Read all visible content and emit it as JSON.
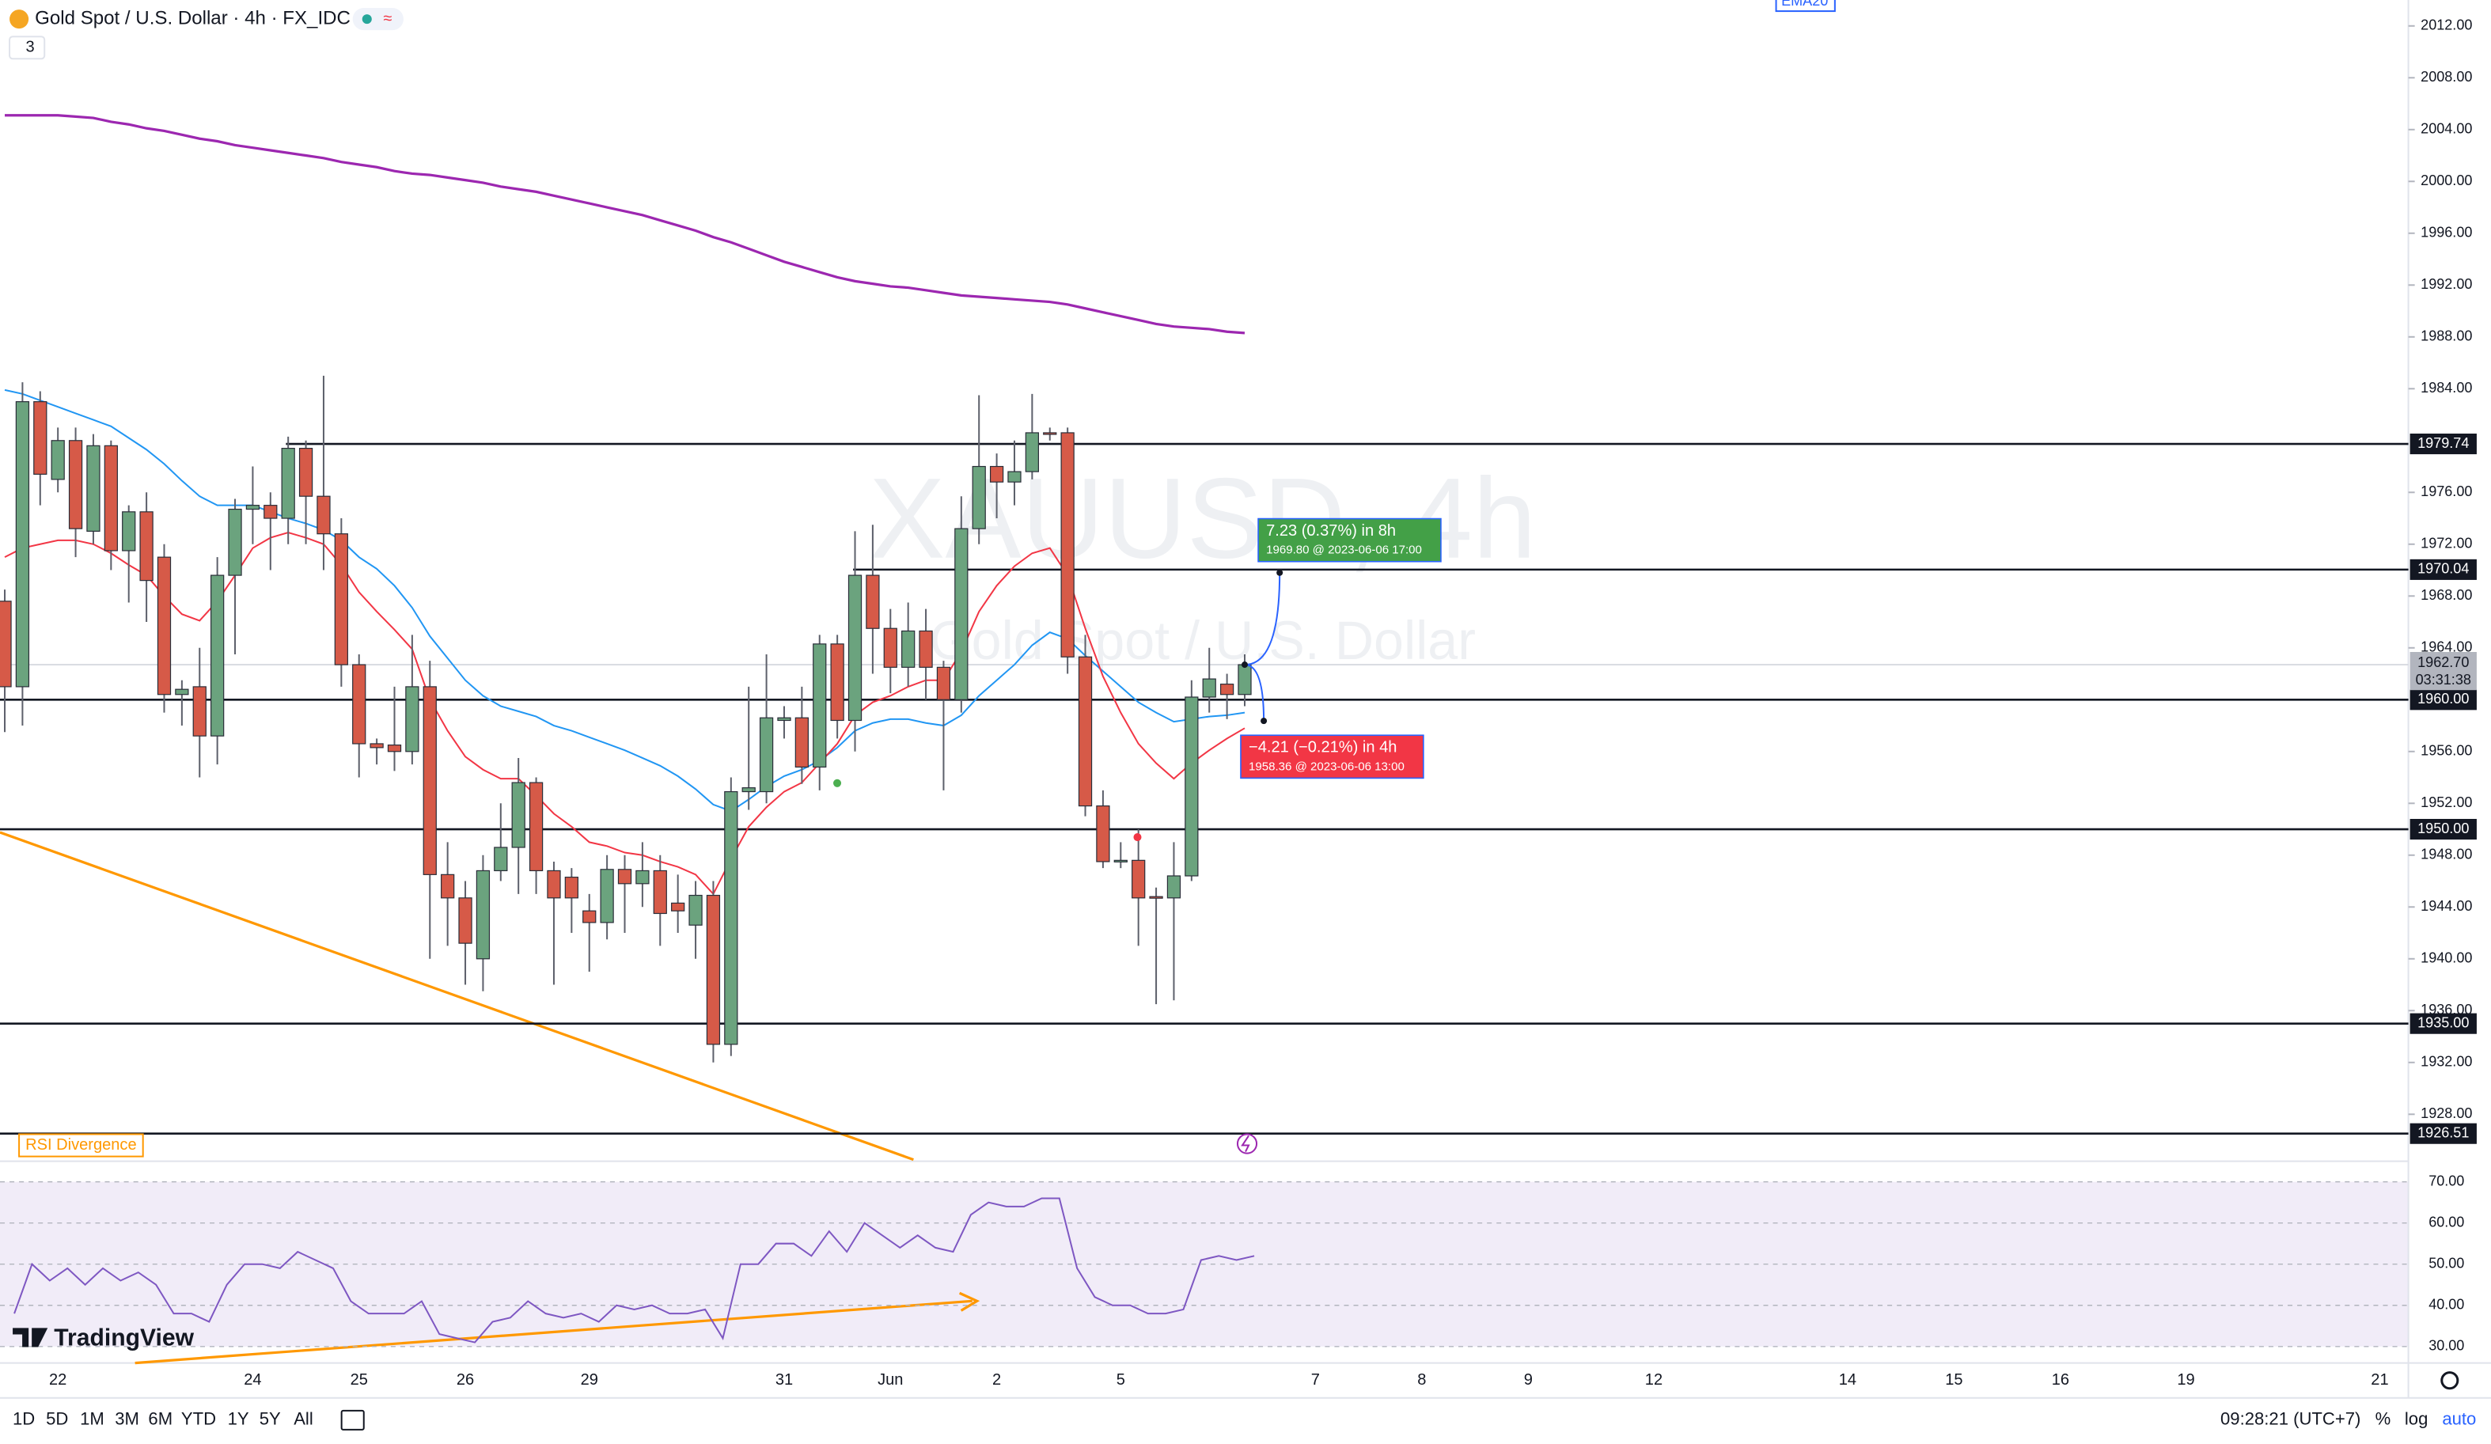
{
  "header": {
    "symbol": "Gold Spot / U.S. Dollar · 4h · FX_IDC",
    "indicator_count": "3",
    "ema_tag": "EMA20"
  },
  "watermark": {
    "symbol": "XAUUSD, 4h",
    "name": "Gold Spot / U.S. Dollar"
  },
  "chart_data": {
    "type": "candlestick",
    "categories": [
      null,
      null,
      null,
      "22",
      null,
      null,
      null,
      null,
      null,
      null,
      null,
      null,
      null,
      null,
      "24",
      null,
      null,
      null,
      null,
      null,
      "25",
      null,
      null,
      null,
      null,
      null,
      "26",
      null,
      null,
      null,
      null,
      null,
      null,
      "29",
      null,
      null,
      null,
      null,
      null,
      null,
      null,
      null,
      null,
      null,
      "31",
      null,
      null,
      null,
      null,
      null,
      "Jun",
      null,
      null,
      null,
      null,
      null,
      "2",
      null,
      null,
      null,
      null,
      null,
      null,
      "5",
      null,
      null,
      null,
      null,
      null,
      null,
      null
    ],
    "open": [
      1967.6,
      1961,
      1983,
      1977,
      1980,
      1973,
      1979.6,
      1971.5,
      1974.5,
      1971,
      1960.4,
      1961,
      1957.2,
      1969.6,
      1974.7,
      1975,
      1974,
      1979.4,
      1975.7,
      1972.8,
      1962.7,
      1956.6,
      1956.5,
      1956,
      1961,
      1946.5,
      1944.7,
      1940,
      1946.8,
      1948.6,
      1953.6,
      1946.8,
      1946.3,
      1943.7,
      1942.8,
      1946.9,
      1945.8,
      1946.8,
      1944.3,
      1942.6,
      1944.9,
      1933.4,
      1952.9,
      1952.9,
      1958.4,
      1958.6,
      1954.8,
      1964.3,
      1958.4,
      1969.6,
      1965.5,
      1962.5,
      1965.3,
      1962.5,
      1960,
      1973.2,
      1978,
      1976.8,
      1977.6,
      1980.6,
      1980.6,
      1963.3,
      1951.8,
      1947.5,
      1947.6,
      1944.8,
      1944.7,
      1946.4,
      1960.2,
      1961.2,
      1960.4
    ],
    "high": [
      1968.5,
      1984.5,
      1983.8,
      1981,
      1981,
      1980.5,
      1980,
      1975,
      1976,
      1972,
      1961.5,
      1964,
      1971,
      1975.5,
      1978,
      1976,
      1980.3,
      1980,
      1985,
      1974,
      1963.5,
      1957,
      1961,
      1965,
      1963,
      1949,
      1946,
      1948,
      1952,
      1955.5,
      1954,
      1947.5,
      1947,
      1945,
      1948,
      1948,
      1949,
      1948,
      1946.5,
      1946,
      1946,
      1954,
      1961,
      1963.5,
      1959.5,
      1961,
      1965,
      1965,
      1973,
      1973.5,
      1967,
      1967.5,
      1967,
      1963,
      1975.7,
      1983.5,
      1979,
      1980,
      1983.6,
      1981,
      1981,
      1965,
      1953,
      1949,
      1950,
      1945.5,
      1949,
      1961.5,
      1964,
      1962,
      1963.5
    ],
    "low": [
      1957.5,
      1958,
      1975,
      1976,
      1971,
      1972,
      1970,
      1967.5,
      1966,
      1959,
      1958,
      1954,
      1955,
      1963.5,
      1972,
      1970,
      1972,
      1972,
      1970,
      1961,
      1954,
      1955,
      1954.5,
      1955,
      1940,
      1941,
      1938,
      1937.5,
      1946,
      1945,
      1945,
      1938,
      1942,
      1939,
      1941.5,
      1942,
      1944,
      1941,
      1942,
      1940,
      1932,
      1932.5,
      1951.5,
      1952,
      1957,
      1953.5,
      1953,
      1957,
      1956,
      1962,
      1960.5,
      1961,
      1960,
      1953,
      1959,
      1972,
      1974,
      1975,
      1977,
      1980,
      1962,
      1951,
      1947,
      1947,
      1941,
      1936.5,
      1936.8,
      1946,
      1959,
      1958.5,
      1959.5
    ],
    "close": [
      1961,
      1983,
      1977.4,
      1980,
      1973.2,
      1979.6,
      1971.5,
      1974.5,
      1969.2,
      1960.4,
      1960.8,
      1957.2,
      1969.6,
      1974.7,
      1975,
      1974,
      1979.4,
      1975.7,
      1972.8,
      1962.7,
      1956.6,
      1956.3,
      1956,
      1961,
      1946.5,
      1944.7,
      1941.2,
      1946.8,
      1948.6,
      1953.6,
      1946.8,
      1944.7,
      1944.7,
      1942.8,
      1946.9,
      1945.8,
      1946.8,
      1943.5,
      1943.7,
      1944.9,
      1933.4,
      1952.9,
      1953.2,
      1958.6,
      1958.6,
      1954.8,
      1964.3,
      1958.4,
      1969.6,
      1965.5,
      1962.5,
      1965.3,
      1962.5,
      1960,
      1973.2,
      1978,
      1976.8,
      1977.6,
      1980.6,
      1980.5,
      1963.3,
      1951.8,
      1947.5,
      1947.6,
      1944.7,
      1944.7,
      1946.4,
      1960.2,
      1961.6,
      1960.4,
      1962.7
    ],
    "up_color": "#6ba37e",
    "down_color": "#d65a48",
    "series": [
      {
        "color": "#9c27b0",
        "values": [
          2005.1,
          2005.1,
          2005.1,
          2005.1,
          2005.0,
          2004.9,
          2004.6,
          2004.4,
          2004.1,
          2003.9,
          2003.6,
          2003.3,
          2003.1,
          2002.8,
          2002.6,
          2002.4,
          2002.2,
          2002.0,
          2001.8,
          2001.5,
          2001.3,
          2001.1,
          2000.8,
          2000.6,
          2000.5,
          2000.3,
          2000.1,
          1999.9,
          1999.6,
          1999.4,
          1999.2,
          1998.9,
          1998.6,
          1998.3,
          1998.0,
          1997.7,
          1997.4,
          1997.0,
          1996.6,
          1996.2,
          1995.7,
          1995.3,
          1994.8,
          1994.3,
          1993.8,
          1993.4,
          1993.0,
          1992.6,
          1992.3,
          1992.1,
          1991.9,
          1991.8,
          1991.6,
          1991.4,
          1991.2,
          1991.1,
          1991.0,
          1990.9,
          1990.8,
          1990.7,
          1990.5,
          1990.2,
          1989.9,
          1989.6,
          1989.3,
          1989.0,
          1988.8,
          1988.7,
          1988.6,
          1988.4,
          1988.3
        ]
      },
      {
        "color": "#2196f3",
        "values": [
          1983.9,
          1983.6,
          1983.1,
          1982.6,
          1982.1,
          1981.6,
          1981.1,
          1980.2,
          1979.3,
          1978.2,
          1976.9,
          1975.7,
          1975.0,
          1975.0,
          1975.0,
          1974.5,
          1974.0,
          1973.6,
          1973.1,
          1972.3,
          1971.0,
          1970.1,
          1968.8,
          1967.1,
          1964.9,
          1963.2,
          1961.5,
          1960.3,
          1959.5,
          1959.1,
          1958.7,
          1958.0,
          1957.6,
          1957.1,
          1956.6,
          1956.1,
          1955.5,
          1954.9,
          1954.1,
          1953.1,
          1951.9,
          1951.4,
          1952.3,
          1953.3,
          1954.1,
          1954.6,
          1955.3,
          1956.3,
          1957.6,
          1958.2,
          1958.5,
          1958.5,
          1958.2,
          1958.0,
          1958.8,
          1960.3,
          1961.5,
          1962.7,
          1964.2,
          1965.2,
          1964.7,
          1963.4,
          1962.2,
          1961.0,
          1959.8,
          1959.0,
          1958.3,
          1958.5,
          1958.7,
          1958.8,
          1959.0
        ]
      },
      {
        "color": "#f23645",
        "values": [
          1971.0,
          1971.7,
          1972.0,
          1972.3,
          1972.3,
          1972.0,
          1971.3,
          1970.4,
          1969.6,
          1968.0,
          1966.6,
          1966.1,
          1967.6,
          1969.6,
          1971.7,
          1972.5,
          1972.9,
          1972.5,
          1972.0,
          1970.4,
          1968.3,
          1966.8,
          1965.4,
          1963.9,
          1960.0,
          1957.6,
          1955.6,
          1954.6,
          1953.9,
          1953.9,
          1952.6,
          1951.2,
          1950.2,
          1949.0,
          1948.7,
          1948.2,
          1948.0,
          1947.5,
          1947.1,
          1946.5,
          1945.0,
          1947.7,
          1950.2,
          1951.7,
          1952.9,
          1953.6,
          1955.1,
          1956.6,
          1958.8,
          1959.8,
          1960.3,
          1961.0,
          1961.5,
          1961.5,
          1963.7,
          1966.8,
          1968.8,
          1970.3,
          1971.3,
          1971.7,
          1969.6,
          1965.5,
          1961.8,
          1959.0,
          1956.6,
          1955.1,
          1953.9,
          1955.1,
          1956.1,
          1957.0,
          1957.8
        ]
      }
    ],
    "ylim": [
      1924.5,
      2014
    ],
    "yticks": [
      {
        "value": 2012,
        "label": "2012.00"
      },
      {
        "value": 2008,
        "label": "2008.00"
      },
      {
        "value": 2004,
        "label": "2004.00"
      },
      {
        "value": 2000,
        "label": "2000.00"
      },
      {
        "value": 1996,
        "label": "1996.00"
      },
      {
        "value": 1992,
        "label": "1992.00"
      },
      {
        "value": 1988,
        "label": "1988.00"
      },
      {
        "value": 1984,
        "label": "1984.00"
      },
      {
        "value": 1976,
        "label": "1976.00"
      },
      {
        "value": 1972,
        "label": "1972.00"
      },
      {
        "value": 1968,
        "label": "1968.00"
      },
      {
        "value": 1964,
        "label": "1964.00"
      },
      {
        "value": 1956,
        "label": "1956.00"
      },
      {
        "value": 1952,
        "label": "1952.00"
      },
      {
        "value": 1948,
        "label": "1948.00"
      },
      {
        "value": 1944,
        "label": "1944.00"
      },
      {
        "value": 1940,
        "label": "1940.00"
      },
      {
        "value": 1936,
        "label": "1936.00"
      },
      {
        "value": 1932,
        "label": "1932.00"
      },
      {
        "value": 1928,
        "label": "1928.00"
      }
    ],
    "levels": [
      1979.74,
      1970.04,
      {
        "value": 1960,
        "label": "1960.00"
      },
      {
        "value": 1950,
        "label": "1950.00"
      },
      {
        "value": 1935,
        "label": "1935.00"
      },
      1926.51
    ],
    "last_price": {
      "value": 1962.7,
      "label": "1962.70"
    },
    "countdown": "03:31:38",
    "projections": [
      {
        "text": "7.23 (0.37%) in 8h",
        "detail": "1969.80 @ 2023-06-06  17:00",
        "price": 1969.8,
        "color": "#43a047"
      },
      {
        "text": "−4.21 (−0.21%) in 4h",
        "detail": "1958.36 @ 2023-06-06  13:00",
        "price": 1958.36,
        "color": "#f23645"
      }
    ],
    "annotation": "RSI Divergence"
  },
  "rsi": {
    "color": "#7e57c2",
    "ylim": [
      26,
      75
    ],
    "yticks": [
      {
        "value": 70,
        "label": "70.00"
      },
      {
        "value": 60,
        "label": "60.00"
      },
      {
        "value": 50,
        "label": "50.00"
      },
      {
        "value": 40,
        "label": "40.00"
      },
      {
        "value": 30,
        "label": "30.00"
      }
    ],
    "band": [
      30,
      70
    ],
    "values": [
      38,
      50,
      46,
      49,
      45,
      49,
      46,
      48,
      45,
      38,
      38,
      36,
      45,
      50,
      50,
      49,
      53,
      51,
      49,
      41,
      38,
      38,
      38,
      41,
      33,
      32,
      31,
      36,
      37,
      41,
      38,
      37,
      38,
      36,
      40,
      39,
      40,
      38,
      38,
      39,
      32,
      50,
      50,
      55,
      55,
      52,
      58,
      53,
      60,
      57,
      54,
      57,
      54,
      53,
      62,
      65,
      64,
      64,
      66,
      66,
      49,
      42,
      40,
      40,
      38,
      38,
      39,
      51,
      52,
      51,
      52
    ]
  },
  "time_axis": {
    "future": [
      "7",
      "8",
      "9",
      "12",
      "14",
      "15",
      "16",
      "19",
      "21"
    ]
  },
  "toolbar": {
    "ranges": [
      "1D",
      "5D",
      "1M",
      "3M",
      "6M",
      "YTD",
      "1Y",
      "5Y",
      "All"
    ],
    "clock": "09:28:21 (UTC+7)",
    "percent": "%",
    "log": "log",
    "auto": "auto"
  },
  "logo": "TradingView"
}
